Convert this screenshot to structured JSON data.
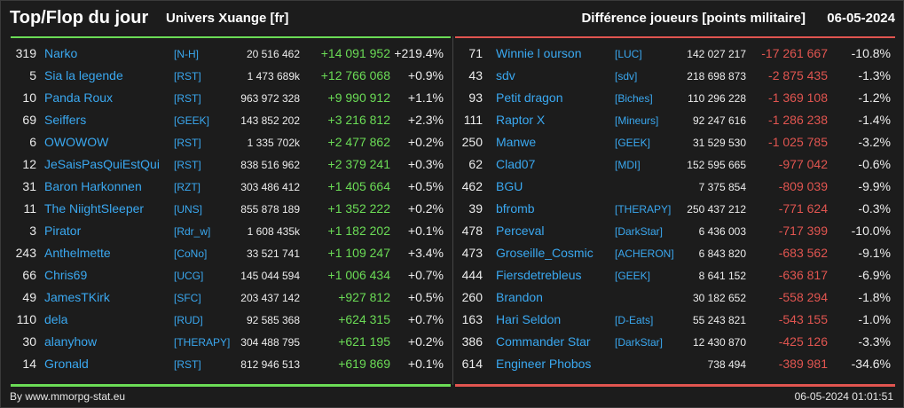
{
  "header": {
    "title": "Top/Flop du jour",
    "server": "Univers Xuange [fr]",
    "metric": "Différence joueurs [points militaire]",
    "date": "06-05-2024"
  },
  "colors": {
    "positive": "#6bdc56",
    "negative": "#e15550",
    "link": "#3aa8f0"
  },
  "top": [
    {
      "rank": "319",
      "name": "Narko",
      "alliance": "[N-H]",
      "points": "20 516 462",
      "diff": "+14 091 952",
      "pct": "+219.4%"
    },
    {
      "rank": "5",
      "name": "Sia la legende",
      "alliance": "[RST]",
      "points": "1 473 689k",
      "diff": "+12 766 068",
      "pct": "+0.9%"
    },
    {
      "rank": "10",
      "name": "Panda Roux",
      "alliance": "[RST]",
      "points": "963 972 328",
      "diff": "+9 990 912",
      "pct": "+1.1%"
    },
    {
      "rank": "69",
      "name": "Seiffers",
      "alliance": "[GEEK]",
      "points": "143 852 202",
      "diff": "+3 216 812",
      "pct": "+2.3%"
    },
    {
      "rank": "6",
      "name": "OWOWOW",
      "alliance": "[RST]",
      "points": "1 335 702k",
      "diff": "+2 477 862",
      "pct": "+0.2%"
    },
    {
      "rank": "12",
      "name": "JeSaisPasQuiEstQui",
      "alliance": "[RST]",
      "points": "838 516 962",
      "diff": "+2 379 241",
      "pct": "+0.3%"
    },
    {
      "rank": "31",
      "name": "Baron Harkonnen",
      "alliance": "[RZT]",
      "points": "303 486 412",
      "diff": "+1 405 664",
      "pct": "+0.5%"
    },
    {
      "rank": "11",
      "name": "The NiightSleeper",
      "alliance": "[UNS]",
      "points": "855 878 189",
      "diff": "+1 352 222",
      "pct": "+0.2%"
    },
    {
      "rank": "3",
      "name": "Pirator",
      "alliance": "[Rdr_w]",
      "points": "1 608 435k",
      "diff": "+1 182 202",
      "pct": "+0.1%"
    },
    {
      "rank": "243",
      "name": "Anthelmette",
      "alliance": "[CoNo]",
      "points": "33 521 741",
      "diff": "+1 109 247",
      "pct": "+3.4%"
    },
    {
      "rank": "66",
      "name": "Chris69",
      "alliance": "[UCG]",
      "points": "145 044 594",
      "diff": "+1 006 434",
      "pct": "+0.7%"
    },
    {
      "rank": "49",
      "name": "JamesTKirk",
      "alliance": "[SFC]",
      "points": "203 437 142",
      "diff": "+927 812",
      "pct": "+0.5%"
    },
    {
      "rank": "110",
      "name": "dela",
      "alliance": "[RUD]",
      "points": "92 585 368",
      "diff": "+624 315",
      "pct": "+0.7%"
    },
    {
      "rank": "30",
      "name": "alanyhow",
      "alliance": "[THERAPY]",
      "points": "304 488 795",
      "diff": "+621 195",
      "pct": "+0.2%"
    },
    {
      "rank": "14",
      "name": "Gronald",
      "alliance": "[RST]",
      "points": "812 946 513",
      "diff": "+619 869",
      "pct": "+0.1%"
    }
  ],
  "flop": [
    {
      "rank": "71",
      "name": "Winnie l ourson",
      "alliance": "[LUC]",
      "points": "142 027 217",
      "diff": "-17 261 667",
      "pct": "-10.8%"
    },
    {
      "rank": "43",
      "name": "sdv",
      "alliance": "[sdv]",
      "points": "218 698 873",
      "diff": "-2 875 435",
      "pct": "-1.3%"
    },
    {
      "rank": "93",
      "name": "Petit dragon",
      "alliance": "[Biches]",
      "points": "110 296 228",
      "diff": "-1 369 108",
      "pct": "-1.2%"
    },
    {
      "rank": "111",
      "name": "Raptor X",
      "alliance": "[Mineurs]",
      "points": "92 247 616",
      "diff": "-1 286 238",
      "pct": "-1.4%"
    },
    {
      "rank": "250",
      "name": "Manwe",
      "alliance": "[GEEK]",
      "points": "31 529 530",
      "diff": "-1 025 785",
      "pct": "-3.2%"
    },
    {
      "rank": "62",
      "name": "Clad07",
      "alliance": "[MDI]",
      "points": "152 595 665",
      "diff": "-977 042",
      "pct": "-0.6%"
    },
    {
      "rank": "462",
      "name": "BGU",
      "alliance": "",
      "points": "7 375 854",
      "diff": "-809 039",
      "pct": "-9.9%"
    },
    {
      "rank": "39",
      "name": "bfromb",
      "alliance": "[THERAPY]",
      "points": "250 437 212",
      "diff": "-771 624",
      "pct": "-0.3%"
    },
    {
      "rank": "478",
      "name": "Perceval",
      "alliance": "[DarkStar]",
      "points": "6 436 003",
      "diff": "-717 399",
      "pct": "-10.0%"
    },
    {
      "rank": "473",
      "name": "Groseille_Cosmic",
      "alliance": "[ACHERON]",
      "points": "6 843 820",
      "diff": "-683 562",
      "pct": "-9.1%"
    },
    {
      "rank": "444",
      "name": "Fiersdetrebleus",
      "alliance": "[GEEK]",
      "points": "8 641 152",
      "diff": "-636 817",
      "pct": "-6.9%"
    },
    {
      "rank": "260",
      "name": "Brandon",
      "alliance": "",
      "points": "30 182 652",
      "diff": "-558 294",
      "pct": "-1.8%"
    },
    {
      "rank": "163",
      "name": "Hari Seldon",
      "alliance": "[D-Eats]",
      "points": "55 243 821",
      "diff": "-543 155",
      "pct": "-1.0%"
    },
    {
      "rank": "386",
      "name": "Commander Star",
      "alliance": "[DarkStar]",
      "points": "12 430 870",
      "diff": "-425 126",
      "pct": "-3.3%"
    },
    {
      "rank": "614",
      "name": "Engineer Phobos",
      "alliance": "",
      "points": "738 494",
      "diff": "-389 981",
      "pct": "-34.6%"
    }
  ],
  "footer": {
    "source": "By www.mmorpg-stat.eu",
    "timestamp": "06-05-2024 01:01:51"
  }
}
